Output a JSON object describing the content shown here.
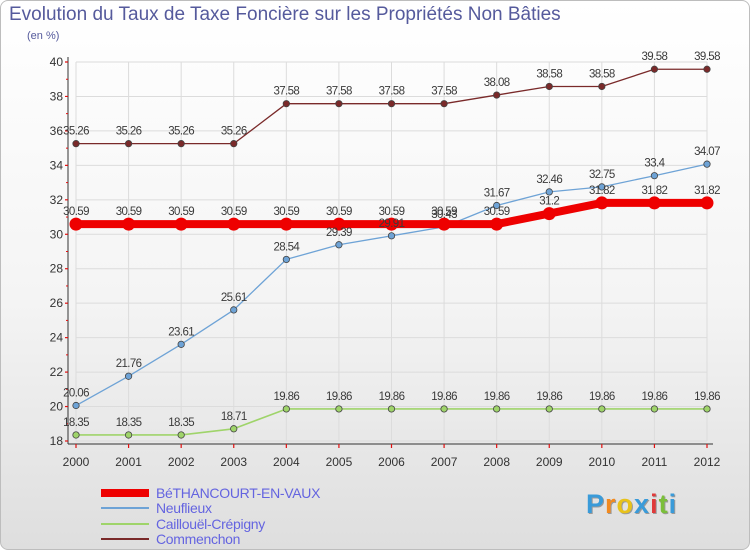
{
  "title": "Evolution du Taux de Taxe Foncière sur les Propriétés Non Bâties",
  "subtitle": "(en %)",
  "logo": {
    "text": "Proxiti",
    "letters": [
      "P",
      "r",
      "o",
      "x",
      "i",
      "t",
      "i"
    ],
    "colors": [
      "#3a9bd9",
      "#f28a1f",
      "#e8c21a",
      "#3a9bd9",
      "#e03a3a",
      "#7bbf3a",
      "#3a9bd9"
    ]
  },
  "chart_data": {
    "type": "line",
    "x": [
      2000,
      2001,
      2002,
      2003,
      2004,
      2005,
      2006,
      2007,
      2008,
      2009,
      2010,
      2011,
      2012
    ],
    "ylim": [
      18,
      40
    ],
    "yticks": [
      18,
      20,
      22,
      24,
      26,
      28,
      30,
      32,
      34,
      36,
      38,
      40
    ],
    "series": [
      {
        "name": "Commenchon",
        "color": "#7a2a2a",
        "width": 1.3,
        "marker": 3.2,
        "values": [
          35.26,
          35.26,
          35.26,
          35.26,
          37.58,
          37.58,
          37.58,
          37.58,
          38.08,
          38.58,
          38.58,
          39.58,
          39.58
        ],
        "labels": [
          "35.26",
          "35.26",
          "35.26",
          "35.26",
          "37.58",
          "37.58",
          "37.58",
          "37.58",
          "38.08",
          "38.58",
          "38.58",
          "39.58",
          "39.58"
        ]
      },
      {
        "name": "Caillouël-Crépigny",
        "color": "#9fd46a",
        "width": 1.6,
        "marker": 3.2,
        "values": [
          18.35,
          18.35,
          18.35,
          18.71,
          19.86,
          19.86,
          19.86,
          19.86,
          19.86,
          19.86,
          19.86,
          19.86,
          19.86
        ],
        "labels": [
          "18.35",
          "18.35",
          "18.35",
          "18.71",
          "19.86",
          "19.86",
          "19.86",
          "19.86",
          "19.86",
          "19.86",
          "19.86",
          "19.86",
          "19.86"
        ]
      },
      {
        "name": "Neuflieux",
        "color": "#6ea3d6",
        "width": 1.3,
        "marker": 3.2,
        "values": [
          20.06,
          21.76,
          23.61,
          25.61,
          28.54,
          29.39,
          29.91,
          30.43,
          31.67,
          32.46,
          32.75,
          33.4,
          34.07
        ],
        "labels": [
          "20.06",
          "21.76",
          "23.61",
          "25.61",
          "28.54",
          "29.39",
          "29.91",
          "30.43",
          "31.67",
          "32.46",
          "32.75",
          "33.4",
          "34.07"
        ]
      },
      {
        "name": "BéTHANCOURT-EN-VAUX",
        "color": "#ee0000",
        "width": 8,
        "marker": 6.5,
        "values": [
          30.59,
          30.59,
          30.59,
          30.59,
          30.59,
          30.59,
          30.59,
          30.59,
          30.59,
          31.2,
          31.82,
          31.82,
          31.82
        ],
        "labels": [
          "30.59",
          "30.59",
          "30.59",
          "30.59",
          "30.59",
          "30.59",
          "30.59",
          "30.59",
          "30.59",
          "31.2",
          "31.82",
          "31.82",
          "31.82"
        ]
      }
    ],
    "legend": [
      "BéTHANCOURT-EN-VAUX",
      "Neuflieux",
      "Caillouël-Crépigny",
      "Commenchon"
    ],
    "legend_position": "bottom-left",
    "grid": true
  }
}
